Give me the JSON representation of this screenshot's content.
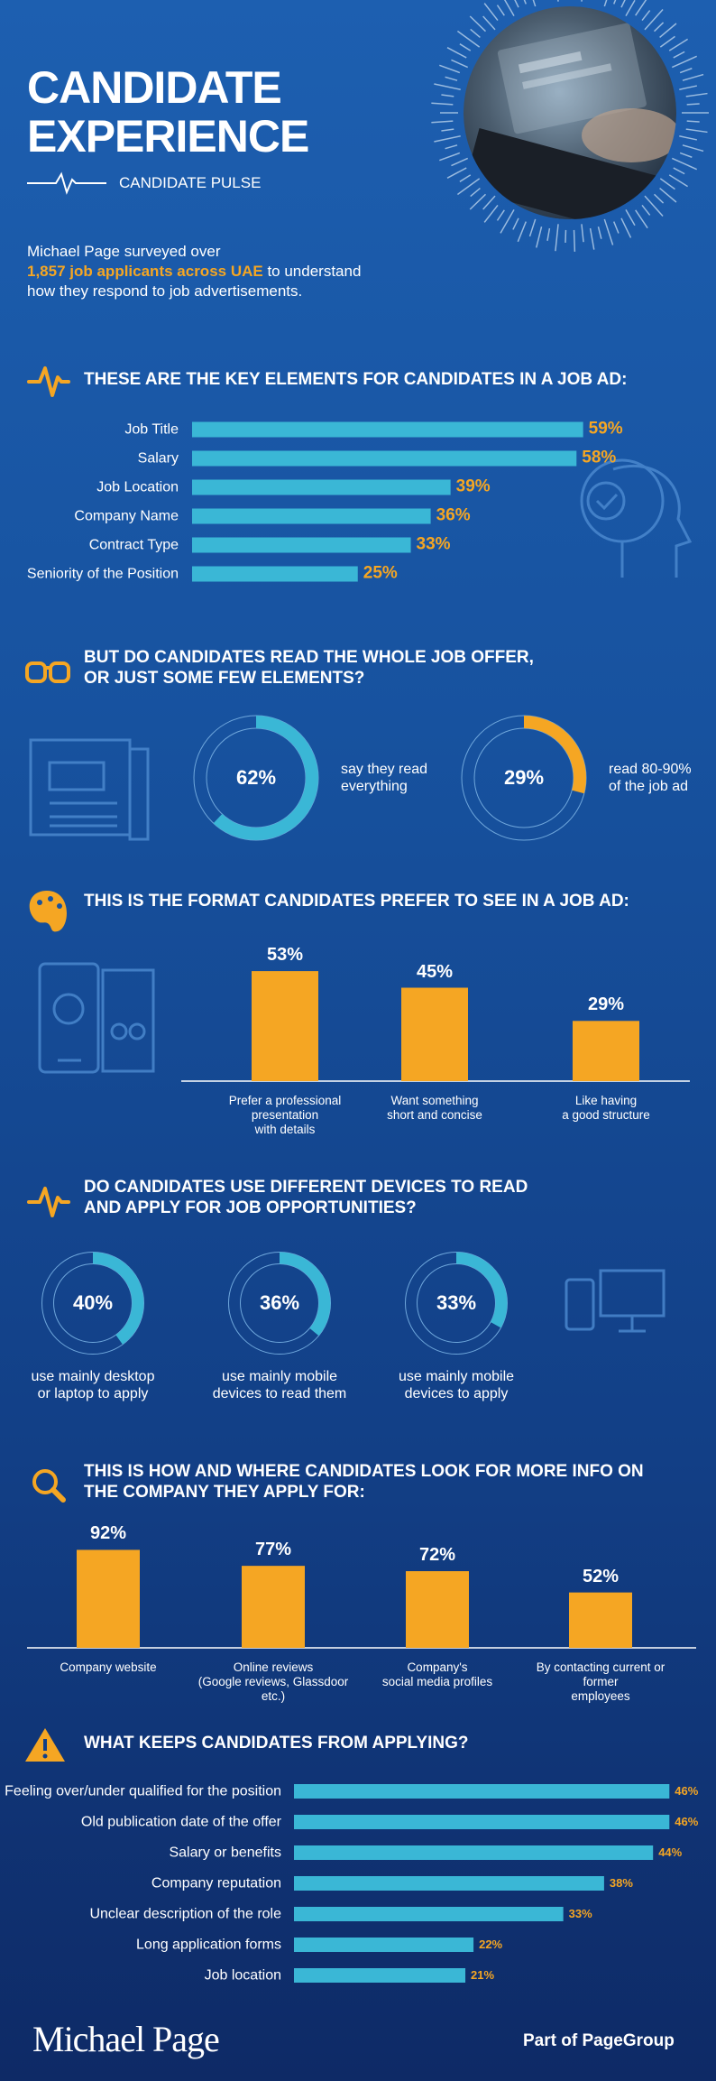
{
  "header": {
    "title": "CANDIDATE\nEXPERIENCE",
    "subtitle": "CANDIDATE PULSE",
    "intro_before": "Michael Page surveyed over",
    "intro_highlight": "1,857 job applicants across UAE",
    "intro_after": "to understand how they respond to job advertisements."
  },
  "chart_data": [
    {
      "type": "bar",
      "horizontal": true,
      "title": "THESE ARE THE KEY ELEMENTS FOR CANDIDATES  IN A JOB AD:",
      "categories": [
        "Job Title",
        "Salary",
        "Job Location",
        "Company Name",
        "Contract Type",
        "Seniority of the Position"
      ],
      "values": [
        59,
        58,
        39,
        36,
        33,
        25
      ],
      "value_labels": [
        "59%",
        "58%",
        "39%",
        "36%",
        "33%",
        "25%"
      ],
      "color": "#3ab7d6",
      "label_color": "#f5a623"
    },
    {
      "type": "donut",
      "title": "BUT DO CANDIDATES READ THE WHOLE JOB OFFER,\nOR JUST SOME FEW ELEMENTS?",
      "categories": [
        "say they read\neverything",
        "read 80-90%\nof the job ad"
      ],
      "values": [
        62,
        29
      ],
      "value_labels": [
        "62%",
        "29%"
      ],
      "colors": [
        "#3ab7d6",
        "#f5a623"
      ]
    },
    {
      "type": "bar",
      "horizontal": false,
      "title": "THIS IS THE FORMAT CANDIDATES PREFER TO SEE IN A JOB AD:",
      "categories": [
        "Prefer a professional\npresentation\nwith details",
        "Want something\nshort and concise",
        "Like having\na good structure"
      ],
      "values": [
        53,
        45,
        29
      ],
      "value_labels": [
        "53%",
        "45%",
        "29%"
      ],
      "color": "#f5a623",
      "label_color": "#ffffff"
    },
    {
      "type": "donut",
      "title": "DO CANDIDATES USE DIFFERENT DEVICES TO READ\nAND APPLY FOR JOB OPPORTUNITIES?",
      "categories": [
        "use mainly desktop\nor laptop to apply",
        "use mainly mobile\ndevices to read them",
        "use mainly mobile\ndevices to apply"
      ],
      "values": [
        40,
        36,
        33
      ],
      "value_labels": [
        "40%",
        "36%",
        "33%"
      ],
      "colors": [
        "#3ab7d6",
        "#3ab7d6",
        "#3ab7d6"
      ]
    },
    {
      "type": "bar",
      "horizontal": false,
      "title": "THIS IS HOW AND WHERE CANDIDATES LOOK FOR MORE INFO ON\nTHE COMPANY THEY APPLY FOR:",
      "categories": [
        "Company website",
        "Online reviews\n(Google reviews, Glassdoor\netc.)",
        "Company's\nsocial media profiles",
        "By contacting current or former\nemployees"
      ],
      "values": [
        92,
        77,
        72,
        52
      ],
      "value_labels": [
        "92%",
        "77%",
        "72%",
        "52%"
      ],
      "color": "#f5a623",
      "label_color": "#ffffff"
    },
    {
      "type": "bar",
      "horizontal": true,
      "title": "WHAT KEEPS CANDIDATES  FROM APPLYING?",
      "categories": [
        "Feeling over/under qualified for the position",
        "Old publication date of the offer",
        "Salary or benefits",
        "Company reputation",
        "Unclear description of the role",
        "Long application forms",
        "Job location"
      ],
      "values": [
        46,
        46,
        44,
        38,
        33,
        22,
        21
      ],
      "value_labels": [
        "46%",
        "46%",
        "44%",
        "38%",
        "33%",
        "22%",
        "21%"
      ],
      "color": "#3ab7d6",
      "label_color": "#f5a623"
    }
  ],
  "footer": {
    "logo": "Michael Page",
    "tagline": "Part of PageGroup"
  }
}
